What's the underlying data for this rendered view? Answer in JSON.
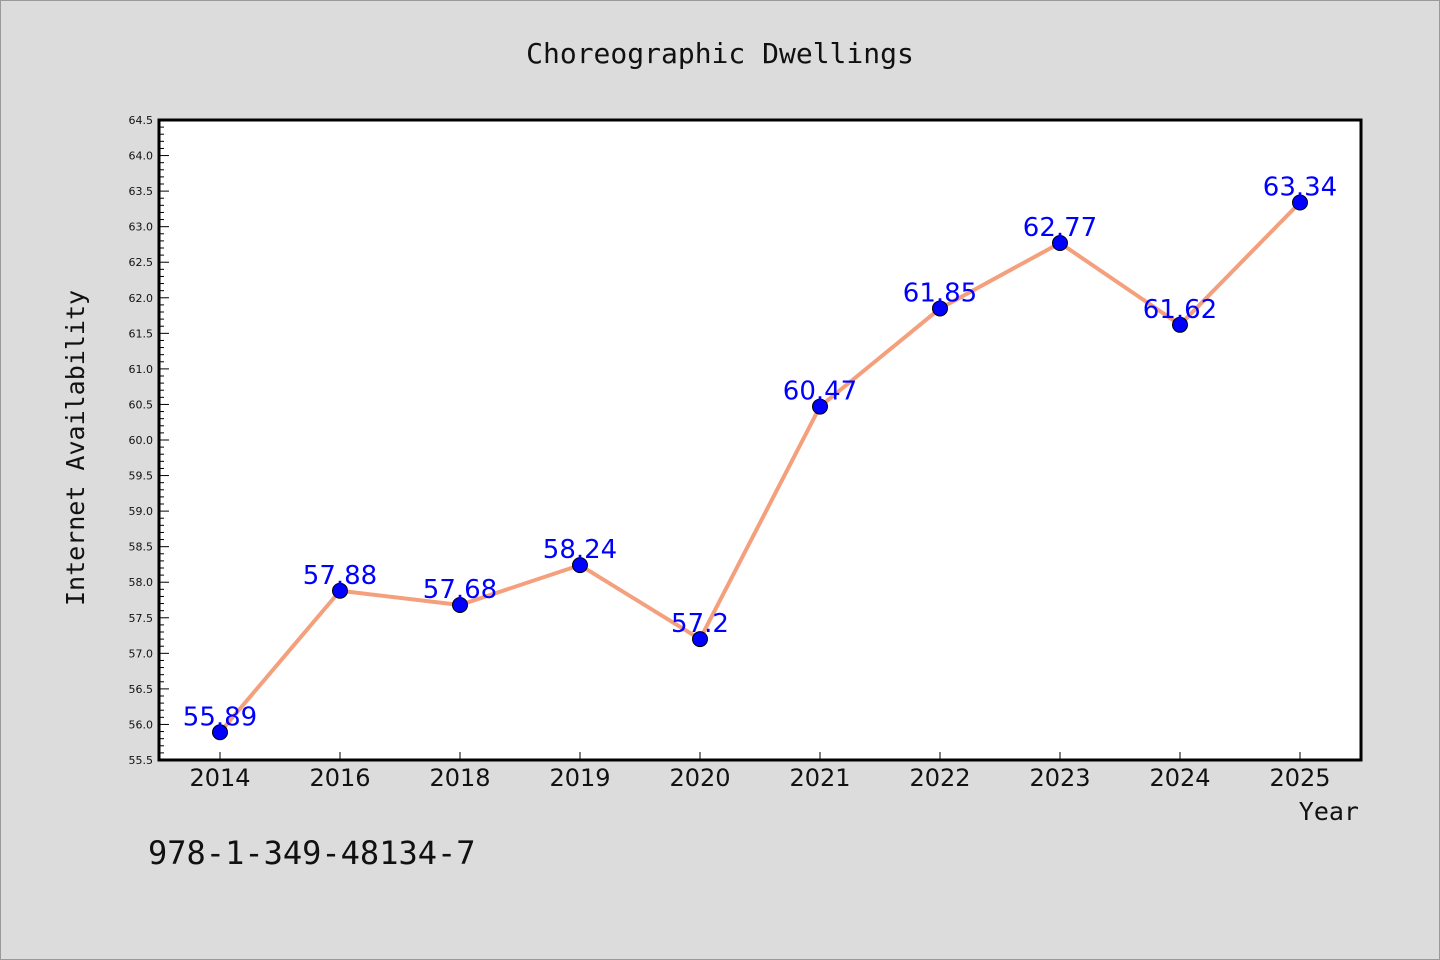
{
  "chart_data": {
    "type": "line",
    "title": "Choreographic Dwellings",
    "xlabel": "Year",
    "ylabel": "Internet Availability",
    "categories": [
      "2014",
      "2016",
      "2018",
      "2019",
      "2020",
      "2021",
      "2022",
      "2023",
      "2024",
      "2025"
    ],
    "series": [
      {
        "values": [
          55.89,
          57.88,
          57.68,
          58.24,
          57.2,
          60.47,
          61.85,
          62.77,
          61.62,
          63.34
        ],
        "line_color": "#f4a07c",
        "marker_color": "#0000ff",
        "label_color": "#0000ff"
      }
    ],
    "ylim": [
      55.5,
      64.5
    ],
    "yticks": [
      "55.5",
      "56.0",
      "56.5",
      "57.0",
      "57.5",
      "58.0",
      "58.5",
      "59.0",
      "59.5",
      "60.0",
      "60.5",
      "61.0",
      "61.5",
      "62.0",
      "62.5",
      "63.0",
      "63.5",
      "64.0",
      "64.5"
    ],
    "grid": false,
    "data_labels": [
      "55.89",
      "57.88",
      "57.68",
      "58.24",
      "57.2",
      "60.47",
      "61.85",
      "62.77",
      "61.62",
      "63.34"
    ]
  },
  "footnote": "978-1-349-48134-7"
}
